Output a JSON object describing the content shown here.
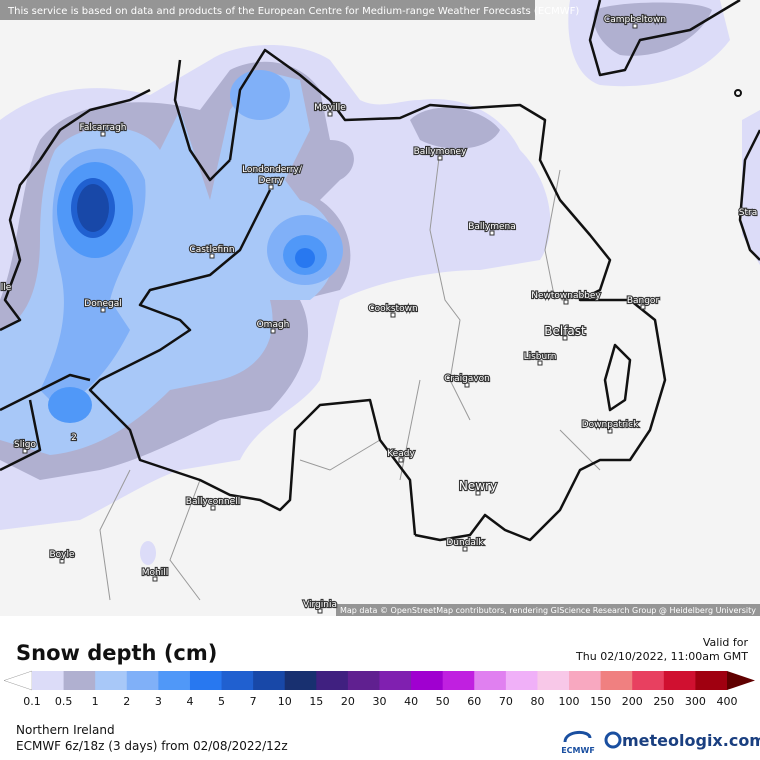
{
  "header": {
    "attribution": "This service is based on data and products of the European Centre for Medium-range Weather Forecasts (ECMWF)"
  },
  "map": {
    "places": [
      "Campbeltown",
      "Moville",
      "Falcarragh",
      "Ballymoney",
      "Londonderry/",
      "Derry",
      "Ballymena",
      "Castlefinn",
      "Donegal",
      "Newtownabbey",
      "Bangor",
      "Cookstown",
      "Omagh",
      "Belfast",
      "Lisburn",
      "Craigavon",
      "Downpatrick",
      "Sligo",
      "Keady",
      "Newry",
      "Ballyconnell",
      "Dundalk",
      "Boyle",
      "Mohill",
      "Virginia",
      "lle",
      "Stra"
    ],
    "contour_label": "2",
    "credit": "Map data © OpenStreetMap contributors, rendering GIScience Research Group @ Heidelberg University"
  },
  "legend": {
    "title": "Snow depth (cm)",
    "valid_label": "Valid for",
    "valid_time": "Thu 02/10/2022, 11:00am GMT",
    "labels": [
      "0.1",
      "0.5",
      "1",
      "2",
      "3",
      "4",
      "5",
      "7",
      "10",
      "15",
      "20",
      "30",
      "40",
      "50",
      "60",
      "70",
      "80",
      "100",
      "150",
      "200",
      "250",
      "300",
      "400"
    ],
    "colors": [
      "#dcdcf8",
      "#b0b0d0",
      "#a8c8f8",
      "#80b0f8",
      "#5098f8",
      "#2878f0",
      "#2060d0",
      "#1848a8",
      "#183070",
      "#402080",
      "#602090",
      "#8020b0",
      "#a000d0",
      "#c020e0",
      "#e080f0",
      "#f0b0f8",
      "#f8c8e8",
      "#f8a8c0",
      "#f08080",
      "#e84060",
      "#d01030",
      "#a00010"
    ],
    "under_color": "#ffffff",
    "over_color": "#600000"
  },
  "footer": {
    "region": "Northern Ireland",
    "model": "ECMWF 6z/18z (3 days) from 02/08/2022/12z",
    "ecmwf_logo": "ECMWF",
    "brand": "meteologix.com"
  }
}
